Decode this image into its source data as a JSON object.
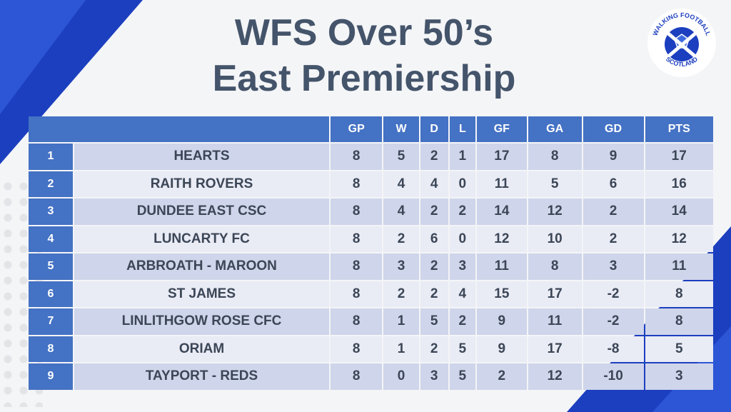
{
  "title_line1": "WFS Over 50’s",
  "title_line2": "East Premiership",
  "logo": {
    "top_text": "WALKING FOOTBALL",
    "bottom_text": "SCOTLAND"
  },
  "headers": [
    "",
    "GP",
    "W",
    "D",
    "L",
    "GF",
    "GA",
    "GD",
    "PTS"
  ],
  "rows": [
    [
      "1",
      "HEARTS",
      "8",
      "5",
      "2",
      "1",
      "17",
      "8",
      "9",
      "17"
    ],
    [
      "2",
      "RAITH ROVERS",
      "8",
      "4",
      "4",
      "0",
      "11",
      "5",
      "6",
      "16"
    ],
    [
      "3",
      "DUNDEE EAST CSC",
      "8",
      "4",
      "2",
      "2",
      "14",
      "12",
      "2",
      "14"
    ],
    [
      "4",
      "LUNCARTY FC",
      "8",
      "2",
      "6",
      "0",
      "12",
      "10",
      "2",
      "12"
    ],
    [
      "5",
      "ARBROATH - MAROON",
      "8",
      "3",
      "2",
      "3",
      "11",
      "8",
      "3",
      "11"
    ],
    [
      "6",
      "ST JAMES",
      "8",
      "2",
      "2",
      "4",
      "15",
      "17",
      "-2",
      "8"
    ],
    [
      "7",
      "LINLITHGOW ROSE CFC",
      "8",
      "1",
      "5",
      "2",
      "9",
      "11",
      "-2",
      "8"
    ],
    [
      "8",
      "ORIAM",
      "8",
      "1",
      "2",
      "5",
      "9",
      "17",
      "-8",
      "5"
    ],
    [
      "9",
      "TAYPORT - REDS",
      "8",
      "0",
      "3",
      "5",
      "2",
      "12",
      "-10",
      "3"
    ]
  ],
  "colors": {
    "header": "#4472c4",
    "row_dark": "#cfd5ea",
    "row_light": "#e9ebf5",
    "text": "#3b4656"
  }
}
